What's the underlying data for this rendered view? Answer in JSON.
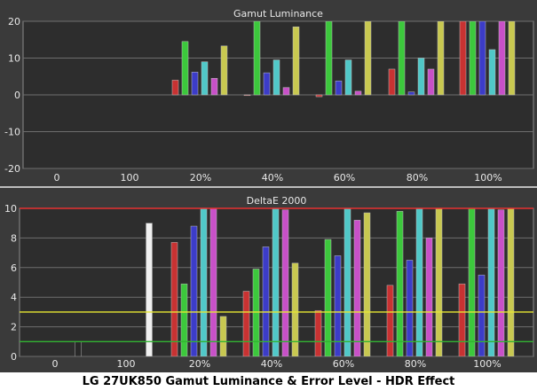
{
  "caption": "LG 27UK850 Gamut Luminance & Error Level - HDR Effect",
  "colors": {
    "background": "#3a3a3a",
    "plot_background": "#2d2d2d",
    "grid": "#6e6e6e",
    "text": "#e8e8e8",
    "red_bar": "#c83232",
    "green_bar": "#3cc83c",
    "blue_bar": "#3c3cc8",
    "cyan_bar": "#50c8c8",
    "magenta_bar": "#c850c8",
    "yellow_bar": "#c8c850",
    "white_bar": "#f0f0f0",
    "gray_bar": "#282828",
    "limit_red": "#e83232",
    "limit_yellow": "#e8e832",
    "limit_green": "#32b432"
  },
  "chart_data": [
    {
      "type": "bar",
      "title": "Gamut Luminance",
      "categories": [
        "0",
        "100",
        "20%",
        "40%",
        "60%",
        "80%",
        "100%"
      ],
      "ylim": [
        -20,
        20
      ],
      "yticks": [
        -20,
        -10,
        0,
        10,
        20
      ],
      "grid": true,
      "series": [
        {
          "color_key": "red_bar",
          "values": [
            null,
            null,
            4.0,
            0,
            -0.5,
            7.0,
            20
          ]
        },
        {
          "color_key": "green_bar",
          "values": [
            null,
            null,
            14.5,
            20,
            20,
            20,
            20
          ]
        },
        {
          "color_key": "blue_bar",
          "values": [
            null,
            null,
            6.2,
            6.0,
            3.8,
            0.8,
            20
          ]
        },
        {
          "color_key": "cyan_bar",
          "values": [
            null,
            null,
            9.0,
            9.5,
            9.5,
            10.0,
            12.3
          ]
        },
        {
          "color_key": "magenta_bar",
          "values": [
            null,
            null,
            4.5,
            2.0,
            1.0,
            7.0,
            20
          ]
        },
        {
          "color_key": "yellow_bar",
          "values": [
            null,
            null,
            13.3,
            18.5,
            20,
            20,
            20
          ]
        }
      ]
    },
    {
      "type": "bar",
      "title": "DeltaE 2000",
      "categories": [
        "0",
        "100",
        "20%",
        "40%",
        "60%",
        "80%",
        "100%"
      ],
      "ylim": [
        0,
        10
      ],
      "yticks": [
        0,
        2,
        4,
        6,
        8,
        10
      ],
      "grid": true,
      "reference_lines": [
        {
          "value": 10,
          "color_key": "limit_red"
        },
        {
          "value": 3,
          "color_key": "limit_yellow"
        },
        {
          "value": 1,
          "color_key": "limit_green"
        }
      ],
      "neutral_bars": [
        {
          "category": "0",
          "color_key": "gray_bar",
          "value": 1.0
        },
        {
          "category": "100",
          "color_key": "white_bar",
          "value": 9.0
        }
      ],
      "series": [
        {
          "color_key": "red_bar",
          "values": [
            null,
            null,
            7.7,
            4.4,
            3.1,
            4.8,
            4.9
          ]
        },
        {
          "color_key": "green_bar",
          "values": [
            null,
            null,
            4.9,
            5.9,
            7.9,
            9.8,
            10
          ]
        },
        {
          "color_key": "blue_bar",
          "values": [
            null,
            null,
            8.8,
            7.4,
            6.8,
            6.5,
            5.5
          ]
        },
        {
          "color_key": "cyan_bar",
          "values": [
            null,
            null,
            10,
            10,
            10,
            10,
            10
          ]
        },
        {
          "color_key": "magenta_bar",
          "values": [
            null,
            null,
            10,
            9.9,
            9.2,
            8.0,
            9.9
          ]
        },
        {
          "color_key": "yellow_bar",
          "values": [
            null,
            null,
            2.7,
            6.3,
            9.7,
            10,
            10
          ]
        }
      ]
    }
  ]
}
